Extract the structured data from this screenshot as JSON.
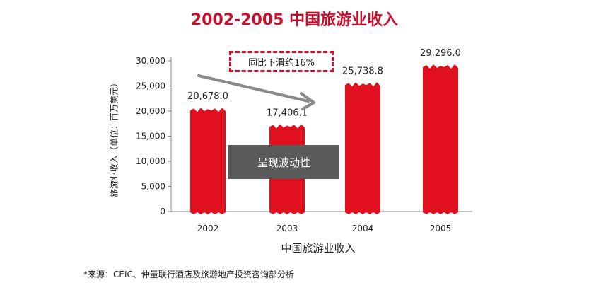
{
  "chart_data": {
    "type": "bar",
    "title": "2002-2005  中国旅游业收入",
    "xlabel": "中国旅游业收入",
    "ylabel": "旅游业收入（单位：百万美元）",
    "categories": [
      "2002",
      "2003",
      "2004",
      "2005"
    ],
    "values": [
      20678.0,
      17406.1,
      25738.8,
      29296.0
    ],
    "value_labels": [
      "20,678.0",
      "17,406.1",
      "25,738.8",
      "29,296.0"
    ],
    "ylim": [
      0,
      30000
    ],
    "yticks": [
      "0",
      "5,000",
      "10,000",
      "15,000",
      "20,000",
      "25,000",
      "30,000"
    ],
    "grid": false,
    "bar_color": "#e0101f",
    "annotations": {
      "callout": "同比下滑约16%",
      "note": "呈现波动性"
    },
    "source": "*来源：CEIC、仲量联行酒店及旅游地产投资咨询部分析"
  }
}
